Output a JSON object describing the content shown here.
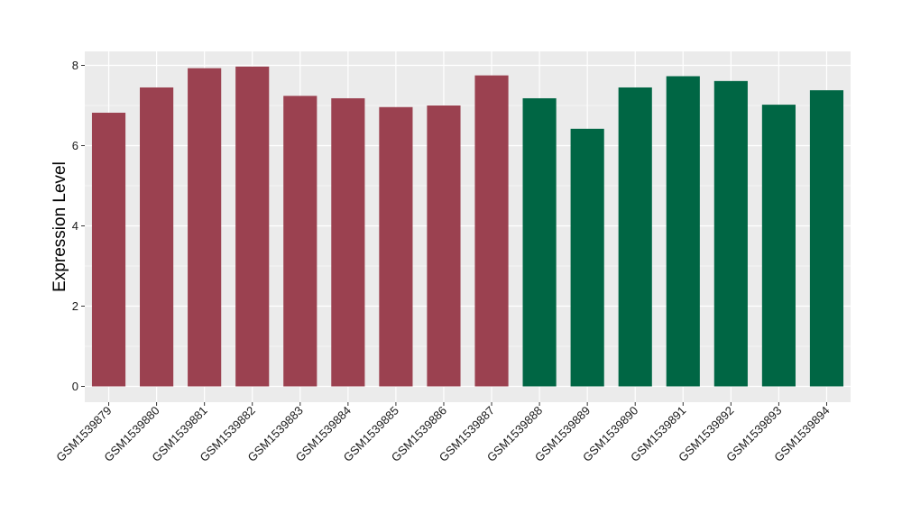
{
  "chart_data": {
    "type": "bar",
    "title": "",
    "xlabel": "",
    "ylabel": "Expression Level",
    "ylim": [
      0,
      8.4
    ],
    "yticks": [
      0,
      2,
      4,
      6,
      8
    ],
    "grid": true,
    "legend": "none",
    "categories": [
      "GSM1539879",
      "GSM1539880",
      "GSM1539881",
      "GSM1539882",
      "GSM1539883",
      "GSM1539884",
      "GSM1539885",
      "GSM1539886",
      "GSM1539887",
      "GSM1539888",
      "GSM1539889",
      "GSM1539890",
      "GSM1539891",
      "GSM1539892",
      "GSM1539893",
      "GSM1539894"
    ],
    "values": [
      6.82,
      7.45,
      7.93,
      7.97,
      7.24,
      7.18,
      6.96,
      7.0,
      7.75,
      7.18,
      6.42,
      7.45,
      7.73,
      7.61,
      7.02,
      7.38
    ],
    "bar_colors": [
      "#9b4150",
      "#9b4150",
      "#9b4150",
      "#9b4150",
      "#9b4150",
      "#9b4150",
      "#9b4150",
      "#9b4150",
      "#9b4150",
      "#006644",
      "#006644",
      "#006644",
      "#006644",
      "#006644",
      "#006644",
      "#006644"
    ],
    "panel_background": "#ebebeb",
    "grid_color": "#ffffff"
  }
}
